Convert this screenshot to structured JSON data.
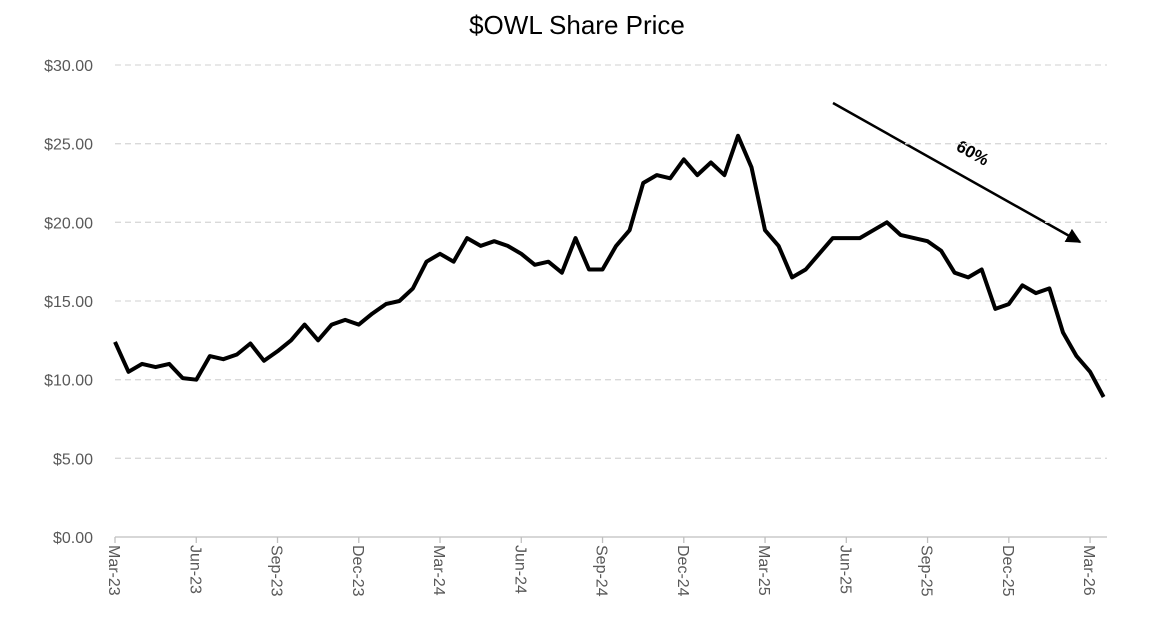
{
  "chart_data": {
    "type": "line",
    "title": "$OWL Share Price",
    "categories": [
      "Mar-23",
      null,
      null,
      null,
      null,
      null,
      "Jun-23",
      null,
      null,
      null,
      null,
      null,
      "Sep-23",
      null,
      null,
      null,
      null,
      null,
      "Dec-23",
      null,
      null,
      null,
      null,
      null,
      "Mar-24",
      null,
      null,
      null,
      null,
      null,
      "Jun-24",
      null,
      null,
      null,
      null,
      null,
      "Sep-24",
      null,
      null,
      null,
      null,
      null,
      "Dec-24",
      null,
      null,
      null,
      null,
      null,
      "Mar-25",
      null,
      null,
      null,
      null,
      null,
      "Jun-25",
      null,
      null,
      null,
      null,
      null,
      "Sep-25",
      null,
      null,
      null,
      null,
      null,
      "Dec-25",
      null,
      null,
      null,
      null,
      null,
      "Mar-26",
      null
    ],
    "values": [
      12.4,
      10.5,
      11.0,
      10.8,
      11.0,
      10.1,
      10.0,
      11.5,
      11.3,
      11.6,
      12.3,
      11.2,
      11.8,
      12.5,
      13.5,
      12.5,
      13.5,
      13.8,
      13.5,
      14.2,
      14.8,
      15.0,
      15.8,
      17.5,
      18.0,
      17.5,
      19.0,
      18.5,
      18.8,
      18.5,
      18.0,
      17.3,
      17.5,
      16.8,
      19.0,
      17.0,
      17.0,
      18.5,
      19.5,
      22.5,
      23.0,
      22.8,
      24.0,
      23.0,
      23.8,
      23.0,
      25.5,
      23.5,
      19.5,
      18.5,
      16.5,
      17.0,
      18.0,
      19.0,
      19.0,
      19.0,
      19.5,
      20.0,
      19.2,
      19.0,
      18.8,
      18.2,
      16.8,
      16.5,
      17.0,
      14.5,
      14.8,
      16.0,
      15.5,
      15.8,
      13.0,
      11.5,
      10.5,
      8.9
    ],
    "color": "#000000",
    "ylim": [
      0,
      30
    ],
    "yticks": [
      {
        "value": 0,
        "label": "$0.00"
      },
      {
        "value": 5,
        "label": "$5.00"
      },
      {
        "value": 10,
        "label": "$10.00"
      },
      {
        "value": 15,
        "label": "$15.00"
      },
      {
        "value": 20,
        "label": "$20.00"
      },
      {
        "value": 25,
        "label": "$25.00"
      },
      {
        "value": 30,
        "label": "$30.00"
      }
    ],
    "grid": true,
    "annotation": "60%"
  }
}
